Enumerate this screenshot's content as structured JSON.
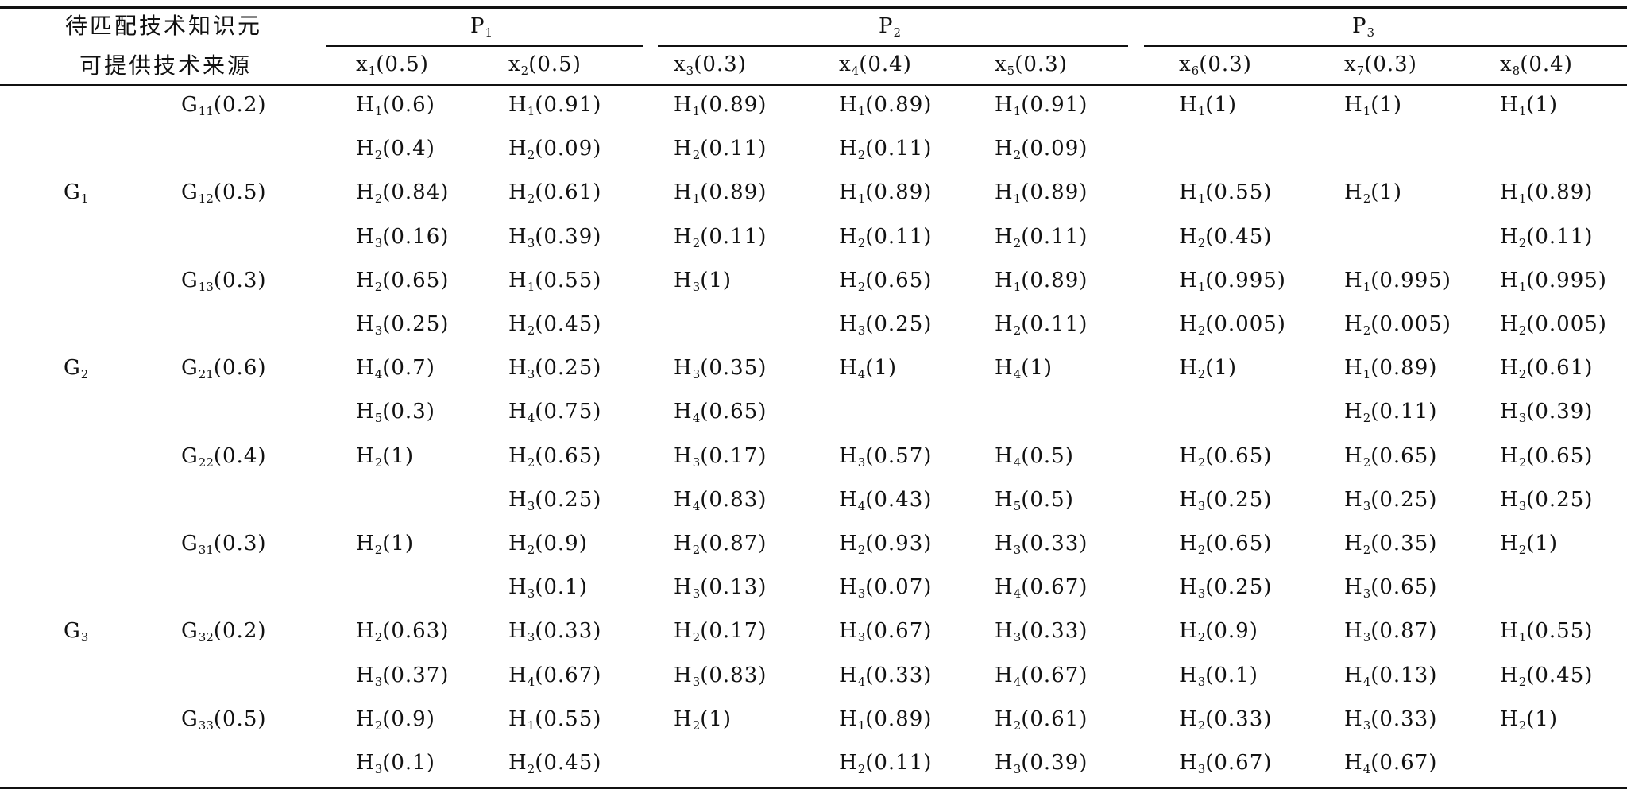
{
  "table": {
    "stub_header_line1": "待匹配技术知识元",
    "stub_header_line2": "可提供技术来源",
    "groups": [
      {
        "label": "P",
        "sub": "1"
      },
      {
        "label": "P",
        "sub": "2"
      },
      {
        "label": "P",
        "sub": "3"
      }
    ],
    "columns": [
      {
        "var": "x",
        "sub": "1",
        "weight": "(0.5)"
      },
      {
        "var": "x",
        "sub": "2",
        "weight": "(0.5)"
      },
      {
        "var": "x",
        "sub": "3",
        "weight": "(0.3)"
      },
      {
        "var": "x",
        "sub": "4",
        "weight": "(0.4)"
      },
      {
        "var": "x",
        "sub": "5",
        "weight": "(0.3)"
      },
      {
        "var": "x",
        "sub": "6",
        "weight": "(0.3)"
      },
      {
        "var": "x",
        "sub": "7",
        "weight": "(0.3)"
      },
      {
        "var": "x",
        "sub": "8",
        "weight": "(0.4)"
      }
    ],
    "rows": [
      {
        "g": "",
        "gs": "",
        "sg": "G",
        "sgs": "11",
        "sgw": "(0.2)",
        "cells": [
          [
            "H",
            "1",
            "(0.6)"
          ],
          [
            "H",
            "1",
            "(0.91)"
          ],
          [
            "H",
            "1",
            "(0.89)"
          ],
          [
            "H",
            "1",
            "(0.89)"
          ],
          [
            "H",
            "1",
            "(0.91)"
          ],
          [
            "H",
            "1",
            "(1)"
          ],
          [
            "H",
            "1",
            "(1)"
          ],
          [
            "H",
            "1",
            "(1)"
          ]
        ]
      },
      {
        "g": "",
        "gs": "",
        "sg": "",
        "sgs": "",
        "sgw": "",
        "cells": [
          [
            "H",
            "2",
            "(0.4)"
          ],
          [
            "H",
            "2",
            "(0.09)"
          ],
          [
            "H",
            "2",
            "(0.11)"
          ],
          [
            "H",
            "2",
            "(0.11)"
          ],
          [
            "H",
            "2",
            "(0.09)"
          ],
          [
            "",
            "",
            ""
          ],
          [
            "",
            "",
            ""
          ],
          [
            "",
            "",
            ""
          ]
        ]
      },
      {
        "g": "G",
        "gs": "1",
        "sg": "G",
        "sgs": "12",
        "sgw": "(0.5)",
        "cells": [
          [
            "H",
            "2",
            "(0.84)"
          ],
          [
            "H",
            "2",
            "(0.61)"
          ],
          [
            "H",
            "1",
            "(0.89)"
          ],
          [
            "H",
            "1",
            "(0.89)"
          ],
          [
            "H",
            "1",
            "(0.89)"
          ],
          [
            "H",
            "1",
            "(0.55)"
          ],
          [
            "H",
            "2",
            "(1)"
          ],
          [
            "H",
            "1",
            "(0.89)"
          ]
        ]
      },
      {
        "g": "",
        "gs": "",
        "sg": "",
        "sgs": "",
        "sgw": "",
        "cells": [
          [
            "H",
            "3",
            "(0.16)"
          ],
          [
            "H",
            "3",
            "(0.39)"
          ],
          [
            "H",
            "2",
            "(0.11)"
          ],
          [
            "H",
            "2",
            "(0.11)"
          ],
          [
            "H",
            "2",
            "(0.11)"
          ],
          [
            "H",
            "2",
            "(0.45)"
          ],
          [
            "",
            "",
            ""
          ],
          [
            "H",
            "2",
            "(0.11)"
          ]
        ]
      },
      {
        "g": "",
        "gs": "",
        "sg": "G",
        "sgs": "13",
        "sgw": "(0.3)",
        "cells": [
          [
            "H",
            "2",
            "(0.65)"
          ],
          [
            "H",
            "1",
            "(0.55)"
          ],
          [
            "H",
            "3",
            "(1)"
          ],
          [
            "H",
            "2",
            "(0.65)"
          ],
          [
            "H",
            "1",
            "(0.89)"
          ],
          [
            "H",
            "1",
            "(0.995)"
          ],
          [
            "H",
            "1",
            "(0.995)"
          ],
          [
            "H",
            "1",
            "(0.995)"
          ]
        ]
      },
      {
        "g": "",
        "gs": "",
        "sg": "",
        "sgs": "",
        "sgw": "",
        "cells": [
          [
            "H",
            "3",
            "(0.25)"
          ],
          [
            "H",
            "2",
            "(0.45)"
          ],
          [
            "",
            "",
            ""
          ],
          [
            "H",
            "3",
            "(0.25)"
          ],
          [
            "H",
            "2",
            "(0.11)"
          ],
          [
            "H",
            "2",
            "(0.005)"
          ],
          [
            "H",
            "2",
            "(0.005)"
          ],
          [
            "H",
            "2",
            "(0.005)"
          ]
        ]
      },
      {
        "g": "G",
        "gs": "2",
        "sg": "G",
        "sgs": "21",
        "sgw": "(0.6)",
        "cells": [
          [
            "H",
            "4",
            "(0.7)"
          ],
          [
            "H",
            "3",
            "(0.25)"
          ],
          [
            "H",
            "3",
            "(0.35)"
          ],
          [
            "H",
            "4",
            "(1)"
          ],
          [
            "H",
            "4",
            "(1)"
          ],
          [
            "H",
            "2",
            "(1)"
          ],
          [
            "H",
            "1",
            "(0.89)"
          ],
          [
            "H",
            "2",
            "(0.61)"
          ]
        ]
      },
      {
        "g": "",
        "gs": "",
        "sg": "",
        "sgs": "",
        "sgw": "",
        "cells": [
          [
            "H",
            "5",
            "(0.3)"
          ],
          [
            "H",
            "4",
            "(0.75)"
          ],
          [
            "H",
            "4",
            "(0.65)"
          ],
          [
            "",
            "",
            ""
          ],
          [
            "",
            "",
            ""
          ],
          [
            "",
            "",
            ""
          ],
          [
            "H",
            "2",
            "(0.11)"
          ],
          [
            "H",
            "3",
            "(0.39)"
          ]
        ]
      },
      {
        "g": "",
        "gs": "",
        "sg": "G",
        "sgs": "22",
        "sgw": "(0.4)",
        "cells": [
          [
            "H",
            "2",
            "(1)"
          ],
          [
            "H",
            "2",
            "(0.65)"
          ],
          [
            "H",
            "3",
            "(0.17)"
          ],
          [
            "H",
            "3",
            "(0.57)"
          ],
          [
            "H",
            "4",
            "(0.5)"
          ],
          [
            "H",
            "2",
            "(0.65)"
          ],
          [
            "H",
            "2",
            "(0.65)"
          ],
          [
            "H",
            "2",
            "(0.65)"
          ]
        ]
      },
      {
        "g": "",
        "gs": "",
        "sg": "",
        "sgs": "",
        "sgw": "",
        "cells": [
          [
            "",
            "",
            ""
          ],
          [
            "H",
            "3",
            "(0.25)"
          ],
          [
            "H",
            "4",
            "(0.83)"
          ],
          [
            "H",
            "4",
            "(0.43)"
          ],
          [
            "H",
            "5",
            "(0.5)"
          ],
          [
            "H",
            "3",
            "(0.25)"
          ],
          [
            "H",
            "3",
            "(0.25)"
          ],
          [
            "H",
            "3",
            "(0.25)"
          ]
        ]
      },
      {
        "g": "",
        "gs": "",
        "sg": "G",
        "sgs": "31",
        "sgw": "(0.3)",
        "cells": [
          [
            "H",
            "2",
            "(1)"
          ],
          [
            "H",
            "2",
            "(0.9)"
          ],
          [
            "H",
            "2",
            "(0.87)"
          ],
          [
            "H",
            "2",
            "(0.93)"
          ],
          [
            "H",
            "3",
            "(0.33)"
          ],
          [
            "H",
            "2",
            "(0.65)"
          ],
          [
            "H",
            "2",
            "(0.35)"
          ],
          [
            "H",
            "2",
            "(1)"
          ]
        ]
      },
      {
        "g": "",
        "gs": "",
        "sg": "",
        "sgs": "",
        "sgw": "",
        "cells": [
          [
            "",
            "",
            ""
          ],
          [
            "H",
            "3",
            "(0.1)"
          ],
          [
            "H",
            "3",
            "(0.13)"
          ],
          [
            "H",
            "3",
            "(0.07)"
          ],
          [
            "H",
            "4",
            "(0.67)"
          ],
          [
            "H",
            "3",
            "(0.25)"
          ],
          [
            "H",
            "3",
            "(0.65)"
          ],
          [
            "",
            "",
            ""
          ]
        ]
      },
      {
        "g": "G",
        "gs": "3",
        "sg": "G",
        "sgs": "32",
        "sgw": "(0.2)",
        "cells": [
          [
            "H",
            "2",
            "(0.63)"
          ],
          [
            "H",
            "3",
            "(0.33)"
          ],
          [
            "H",
            "2",
            "(0.17)"
          ],
          [
            "H",
            "3",
            "(0.67)"
          ],
          [
            "H",
            "3",
            "(0.33)"
          ],
          [
            "H",
            "2",
            "(0.9)"
          ],
          [
            "H",
            "3",
            "(0.87)"
          ],
          [
            "H",
            "1",
            "(0.55)"
          ]
        ]
      },
      {
        "g": "",
        "gs": "",
        "sg": "",
        "sgs": "",
        "sgw": "",
        "cells": [
          [
            "H",
            "3",
            "(0.37)"
          ],
          [
            "H",
            "4",
            "(0.67)"
          ],
          [
            "H",
            "3",
            "(0.83)"
          ],
          [
            "H",
            "4",
            "(0.33)"
          ],
          [
            "H",
            "4",
            "(0.67)"
          ],
          [
            "H",
            "3",
            "(0.1)"
          ],
          [
            "H",
            "4",
            "(0.13)"
          ],
          [
            "H",
            "2",
            "(0.45)"
          ]
        ]
      },
      {
        "g": "",
        "gs": "",
        "sg": "G",
        "sgs": "33",
        "sgw": "(0.5)",
        "cells": [
          [
            "H",
            "2",
            "(0.9)"
          ],
          [
            "H",
            "1",
            "(0.55)"
          ],
          [
            "H",
            "2",
            "(1)"
          ],
          [
            "H",
            "1",
            "(0.89)"
          ],
          [
            "H",
            "2",
            "(0.61)"
          ],
          [
            "H",
            "2",
            "(0.33)"
          ],
          [
            "H",
            "3",
            "(0.33)"
          ],
          [
            "H",
            "2",
            "(1)"
          ]
        ]
      },
      {
        "g": "",
        "gs": "",
        "sg": "",
        "sgs": "",
        "sgw": "",
        "cells": [
          [
            "H",
            "3",
            "(0.1)"
          ],
          [
            "H",
            "2",
            "(0.45)"
          ],
          [
            "",
            "",
            ""
          ],
          [
            "H",
            "2",
            "(0.11)"
          ],
          [
            "H",
            "3",
            "(0.39)"
          ],
          [
            "H",
            "3",
            "(0.67)"
          ],
          [
            "H",
            "4",
            "(0.67)"
          ],
          [
            "",
            "",
            ""
          ]
        ]
      }
    ]
  }
}
